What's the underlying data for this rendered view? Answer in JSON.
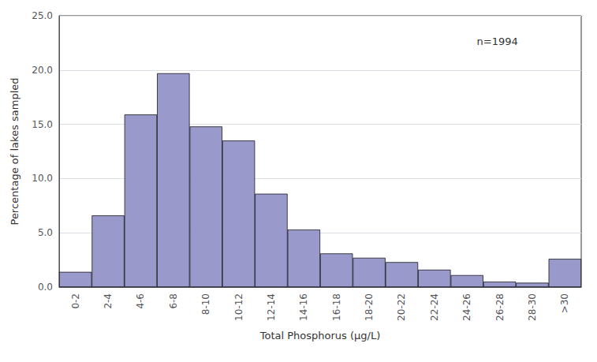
{
  "chart_data": {
    "type": "bar",
    "categories": [
      "0-2",
      "2-4",
      "4-6",
      "6-8",
      "8-10",
      "10-12",
      "12-14",
      "14-16",
      "16-18",
      "18-20",
      "20-22",
      "22-24",
      "24-26",
      "26-28",
      "28-30",
      ">30"
    ],
    "values": [
      1.4,
      6.6,
      15.9,
      19.7,
      14.8,
      13.5,
      8.6,
      5.3,
      3.1,
      2.7,
      2.3,
      1.6,
      1.1,
      0.5,
      0.4,
      2.6
    ],
    "color": "#9999cc",
    "xlabel": "Total Phosphorus (µg/L)",
    "ylabel": "Percentage of lakes sampled",
    "ylim": [
      0,
      25.0
    ],
    "yticks": [
      {
        "value": 0.0,
        "label": "0.0"
      },
      {
        "value": 5.0,
        "label": "5.0"
      },
      {
        "value": 10.0,
        "label": "10.0"
      },
      {
        "value": 15.0,
        "label": "15.0"
      },
      {
        "value": 20.0,
        "label": "20.0"
      },
      {
        "value": 25.0,
        "label": "25.0"
      }
    ],
    "annotation": "n=1994",
    "grid": true
  }
}
